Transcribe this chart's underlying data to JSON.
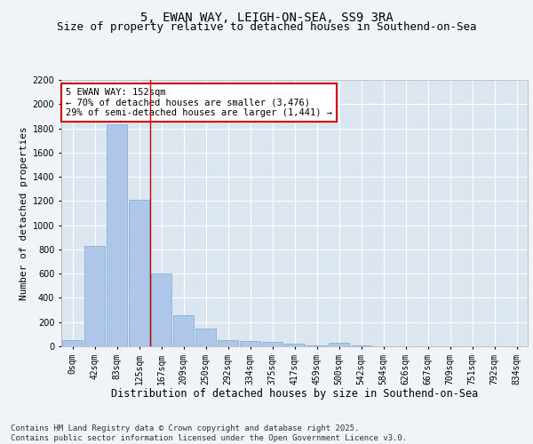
{
  "title1": "5, EWAN WAY, LEIGH-ON-SEA, SS9 3RA",
  "title2": "Size of property relative to detached houses in Southend-on-Sea",
  "xlabel": "Distribution of detached houses by size in Southend-on-Sea",
  "ylabel": "Number of detached properties",
  "categories": [
    "0sqm",
    "42sqm",
    "83sqm",
    "125sqm",
    "167sqm",
    "209sqm",
    "250sqm",
    "292sqm",
    "334sqm",
    "375sqm",
    "417sqm",
    "459sqm",
    "500sqm",
    "542sqm",
    "584sqm",
    "626sqm",
    "667sqm",
    "709sqm",
    "751sqm",
    "792sqm",
    "834sqm"
  ],
  "values": [
    50,
    830,
    1830,
    1210,
    600,
    255,
    150,
    50,
    45,
    35,
    20,
    10,
    30,
    10,
    0,
    0,
    0,
    0,
    0,
    0,
    0
  ],
  "bar_color": "#aec6e8",
  "bar_edge_color": "#7aaad0",
  "vline_x": 3.5,
  "vline_color": "#cc0000",
  "annotation_text": "5 EWAN WAY: 152sqm\n← 70% of detached houses are smaller (3,476)\n29% of semi-detached houses are larger (1,441) →",
  "annotation_box_color": "#ffffff",
  "annotation_box_edge_color": "#cc0000",
  "ylim": [
    0,
    2200
  ],
  "yticks": [
    0,
    200,
    400,
    600,
    800,
    1000,
    1200,
    1400,
    1600,
    1800,
    2000,
    2200
  ],
  "bg_color": "#dce6f0",
  "fig_bg_color": "#f0f4f8",
  "footer_text": "Contains HM Land Registry data © Crown copyright and database right 2025.\nContains public sector information licensed under the Open Government Licence v3.0.",
  "title_fontsize": 10,
  "subtitle_fontsize": 9,
  "xlabel_fontsize": 8.5,
  "ylabel_fontsize": 8,
  "tick_fontsize": 7,
  "annotation_fontsize": 7.5,
  "footer_fontsize": 6.5
}
